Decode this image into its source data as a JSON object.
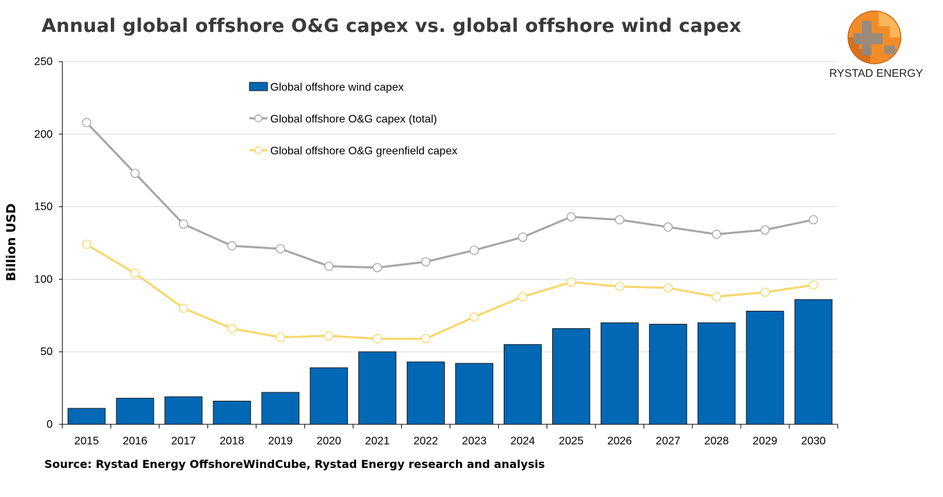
{
  "title": "Annual global offshore O&G capex vs. global offshore wind capex",
  "source": "Source: Rystad Energy OffshoreWindCube, Rystad Energy research and analysis",
  "logo": {
    "text": "RYSTAD ENERGY",
    "colors": {
      "orange": "#f28c28",
      "gray": "#8a8a8a"
    }
  },
  "chart_data": {
    "type": "bar",
    "ylabel": "Billion USD",
    "ylim": [
      0,
      250
    ],
    "yticks": [
      0,
      50,
      100,
      150,
      200,
      250
    ],
    "grid": true,
    "legend_position": "top-center",
    "categories": [
      "2015",
      "2016",
      "2017",
      "2018",
      "2019",
      "2020",
      "2021",
      "2022",
      "2023",
      "2024",
      "2025",
      "2026",
      "2027",
      "2028",
      "2029",
      "2030"
    ],
    "series": [
      {
        "name": "Global offshore wind capex",
        "kind": "bar",
        "color": "#0068b4",
        "values": [
          11,
          18,
          19,
          16,
          22,
          39,
          50,
          43,
          42,
          55,
          66,
          70,
          69,
          70,
          78,
          86
        ]
      },
      {
        "name": "Global offshore O&G capex (total)",
        "kind": "line",
        "color": "#a6a6a6",
        "values": [
          208,
          173,
          138,
          123,
          121,
          109,
          108,
          112,
          120,
          129,
          143,
          141,
          136,
          131,
          134,
          141
        ]
      },
      {
        "name": "Global offshore O&G greenfield capex",
        "kind": "line",
        "color": "#f7d76b",
        "values": [
          124,
          104,
          80,
          66,
          60,
          61,
          59,
          59,
          74,
          88,
          98,
          95,
          94,
          88,
          91,
          96
        ]
      }
    ]
  }
}
